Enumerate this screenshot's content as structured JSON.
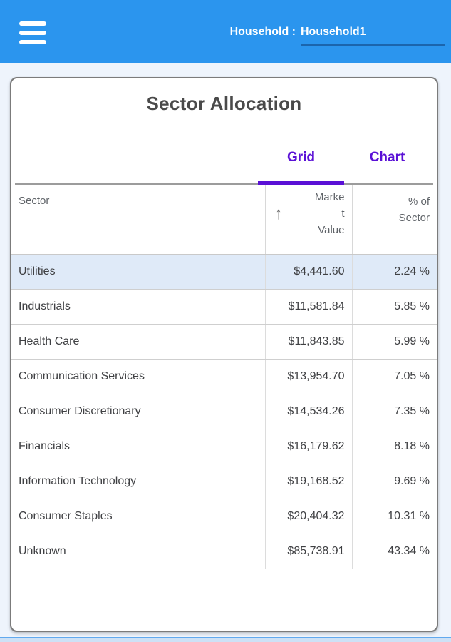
{
  "header": {
    "menu_icon": "hamburger-icon",
    "household_label": "Household :",
    "household_value": "Household1"
  },
  "card": {
    "title": "Sector Allocation",
    "tabs": [
      {
        "label": "Grid",
        "active": true
      },
      {
        "label": "Chart",
        "active": false
      }
    ],
    "table": {
      "columns": {
        "sector": "Sector",
        "market_value": "Market Value",
        "pct_of_sector": "% of Sector"
      },
      "sort_icon": "↑",
      "sorted_by": "Market Value ascending",
      "rows": [
        {
          "sector": "Utilities",
          "market_value": "$4,441.60",
          "pct": "2.24 %",
          "highlighted": true
        },
        {
          "sector": "Industrials",
          "market_value": "$11,581.84",
          "pct": "5.85 %",
          "highlighted": false
        },
        {
          "sector": "Health Care",
          "market_value": "$11,843.85",
          "pct": "5.99 %",
          "highlighted": false
        },
        {
          "sector": "Communication Services",
          "market_value": "$13,954.70",
          "pct": "7.05 %",
          "highlighted": false
        },
        {
          "sector": "Consumer Discretionary",
          "market_value": "$14,534.26",
          "pct": "7.35 %",
          "highlighted": false
        },
        {
          "sector": "Financials",
          "market_value": "$16,179.62",
          "pct": "8.18 %",
          "highlighted": false
        },
        {
          "sector": "Information Technology",
          "market_value": "$19,168.52",
          "pct": "9.69 %",
          "highlighted": false
        },
        {
          "sector": "Consumer Staples",
          "market_value": "$20,404.32",
          "pct": "10.31 %",
          "highlighted": false
        },
        {
          "sector": "Unknown",
          "market_value": "$85,738.91",
          "pct": "43.34 %",
          "highlighted": false
        }
      ]
    }
  },
  "colors": {
    "appbar_blue": "#2b95ee",
    "field_underline_blue": "#1b65ad",
    "accent_purple": "#5a10d6",
    "row_highlight_blue": "#dfeaf8",
    "card_border_gray": "#7b7b7b"
  }
}
